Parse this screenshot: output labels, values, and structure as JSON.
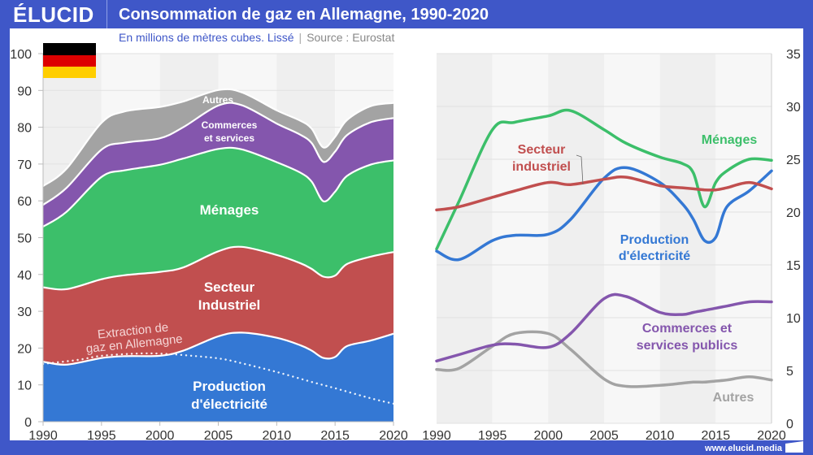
{
  "header": {
    "logo": "ÉLUCID",
    "title": "Consommation de gaz en Allemagne, 1990-2020",
    "subtitle": "En millions de mètres cubes. Lissé",
    "source": "Source : Eurostat"
  },
  "footer": {
    "url": "www.elucid.media"
  },
  "colors": {
    "production": "#3478d4",
    "industriel": "#c14f4f",
    "menages": "#3cbf6a",
    "commerces": "#8456ad",
    "autres": "#a3a3a3",
    "brand": "#3f57c8"
  },
  "chart_data": [
    {
      "type": "area",
      "stacked": true,
      "title": "Consommation de gaz en Allemagne, 1990-2020",
      "subtitle": "En millions de mètres cubes. Lissé",
      "xlabel": "",
      "ylabel": "",
      "xlim": [
        1990,
        2020
      ],
      "ylim": [
        0,
        100
      ],
      "xticks": [
        "1990",
        "1995",
        "2000",
        "2005",
        "2010",
        "2015",
        "2020"
      ],
      "yticks": [
        "0",
        "10",
        "20",
        "30",
        "40",
        "50",
        "60",
        "70",
        "80",
        "90",
        "100"
      ],
      "grid": true,
      "x": [
        1990,
        1992,
        1995,
        1997,
        2000,
        2002,
        2005,
        2007,
        2010,
        2012,
        2013,
        2014,
        2015,
        2016,
        2018,
        2020
      ],
      "series": [
        {
          "name": "Production d'électricité",
          "key": "production",
          "values": [
            16.3,
            15.5,
            17.3,
            17.8,
            17.9,
            19.3,
            23.2,
            24.2,
            22.8,
            20.8,
            19.3,
            17.3,
            17.6,
            20.5,
            22.0,
            23.9
          ]
        },
        {
          "name": "Secteur Industriel",
          "key": "industriel",
          "values": [
            20.2,
            20.5,
            21.4,
            22.0,
            22.8,
            22.6,
            23.1,
            23.3,
            22.5,
            22.3,
            22.2,
            22.1,
            22.1,
            22.3,
            22.8,
            22.2
          ]
        },
        {
          "name": "Ménages",
          "key": "menages",
          "values": [
            16.5,
            21.0,
            27.8,
            28.5,
            29.1,
            29.6,
            27.8,
            26.5,
            25.2,
            24.6,
            23.7,
            20.5,
            22.8,
            23.9,
            25.0,
            24.9
          ]
        },
        {
          "name": "Commerces et services",
          "key": "commerces",
          "values": [
            5.9,
            6.5,
            7.4,
            7.5,
            7.2,
            8.5,
            11.8,
            12.0,
            10.5,
            10.3,
            10.5,
            10.7,
            10.9,
            11.1,
            11.5,
            11.5
          ]
        },
        {
          "name": "Autres",
          "key": "autres",
          "values": [
            5.1,
            5.2,
            7.3,
            8.5,
            8.5,
            7.0,
            4.2,
            3.5,
            3.6,
            3.8,
            3.9,
            3.9,
            4.0,
            4.1,
            4.4,
            4.1
          ]
        }
      ],
      "overlay_line": {
        "name": "Extraction de gaz en Allemagne",
        "style": "dotted",
        "x": [
          1990,
          1993,
          1995,
          1998,
          2000,
          2002,
          2005,
          2007,
          2010,
          2013,
          2015,
          2018,
          2020
        ],
        "values": [
          15.7,
          16.8,
          17.9,
          18.5,
          18.5,
          18.1,
          17.2,
          15.9,
          13.5,
          10.8,
          9.1,
          6.4,
          4.9
        ]
      },
      "labels": [
        {
          "key": "autres",
          "text": "Autres"
        },
        {
          "key": "commerces",
          "text": "Commerces\net services"
        },
        {
          "key": "menages",
          "text": "Ménages"
        },
        {
          "key": "industriel",
          "text": "Secteur\nIndustriel"
        },
        {
          "key": "production",
          "text": "Production\nd'électricité"
        },
        {
          "key": "extraction",
          "text": "Extraction de\ngaz en Allemagne"
        }
      ]
    },
    {
      "type": "line",
      "title": "",
      "xlabel": "",
      "ylabel": "",
      "xlim": [
        1990,
        2020
      ],
      "ylim": [
        0,
        35
      ],
      "xticks": [
        "1990",
        "1995",
        "2000",
        "2005",
        "2010",
        "2015",
        "2020"
      ],
      "yticks": [
        "0",
        "5",
        "10",
        "15",
        "20",
        "25",
        "30",
        "35"
      ],
      "y_axis_side": "right",
      "grid": true,
      "x": [
        1990,
        1992,
        1995,
        1997,
        2000,
        2002,
        2005,
        2007,
        2010,
        2012,
        2013,
        2014,
        2015,
        2016,
        2018,
        2020
      ],
      "series": [
        {
          "name": "Ménages",
          "key": "menages",
          "values": [
            16.5,
            21.0,
            27.8,
            28.5,
            29.1,
            29.6,
            27.8,
            26.5,
            25.2,
            24.6,
            23.7,
            20.5,
            22.8,
            23.9,
            25.0,
            24.9
          ]
        },
        {
          "name": "Secteur industriel",
          "key": "industriel",
          "values": [
            20.2,
            20.5,
            21.4,
            22.0,
            22.8,
            22.6,
            23.1,
            23.3,
            22.5,
            22.3,
            22.2,
            22.1,
            22.1,
            22.3,
            22.8,
            22.2
          ]
        },
        {
          "name": "Production d'électricité",
          "key": "production",
          "values": [
            16.3,
            15.5,
            17.3,
            17.8,
            17.9,
            19.3,
            23.2,
            24.2,
            22.8,
            20.8,
            19.3,
            17.3,
            17.6,
            20.5,
            22.0,
            23.9
          ]
        },
        {
          "name": "Commerces et services publics",
          "key": "commerces",
          "values": [
            5.9,
            6.5,
            7.4,
            7.5,
            7.2,
            8.5,
            11.8,
            12.0,
            10.5,
            10.3,
            10.5,
            10.7,
            10.9,
            11.1,
            11.5,
            11.5
          ]
        },
        {
          "name": "Autres",
          "key": "autres",
          "values": [
            5.1,
            5.2,
            7.3,
            8.5,
            8.5,
            7.0,
            4.2,
            3.5,
            3.6,
            3.8,
            3.9,
            3.9,
            4.0,
            4.1,
            4.4,
            4.1
          ]
        }
      ],
      "labels": [
        {
          "key": "menages",
          "text": "Ménages"
        },
        {
          "key": "industriel",
          "text": "Secteur\nindustriel"
        },
        {
          "key": "production",
          "text": "Production\nd'électricité"
        },
        {
          "key": "commerces",
          "text": "Commerces et\nservices publics"
        },
        {
          "key": "autres",
          "text": "Autres"
        }
      ]
    }
  ]
}
